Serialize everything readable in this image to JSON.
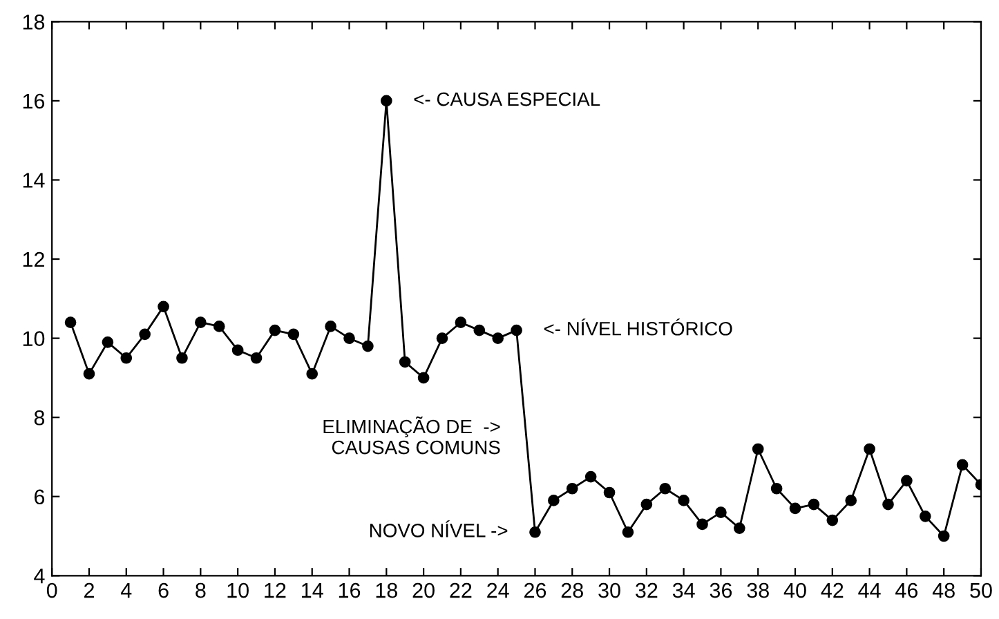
{
  "chart_data": {
    "type": "line",
    "x": [
      1,
      2,
      3,
      4,
      5,
      6,
      7,
      8,
      9,
      10,
      11,
      12,
      13,
      14,
      15,
      16,
      17,
      18,
      19,
      20,
      21,
      22,
      23,
      24,
      25,
      26,
      27,
      28,
      29,
      30,
      31,
      32,
      33,
      34,
      35,
      36,
      37,
      38,
      39,
      40,
      41,
      42,
      43,
      44,
      45,
      46,
      47,
      48,
      49,
      50
    ],
    "series": [
      {
        "color": "#000000",
        "values": [
          10.4,
          9.1,
          9.9,
          9.5,
          10.1,
          10.8,
          9.5,
          10.4,
          10.3,
          9.7,
          9.5,
          10.2,
          10.1,
          9.1,
          10.3,
          10.0,
          9.8,
          16.0,
          9.4,
          9.0,
          10.0,
          10.4,
          10.2,
          10.0,
          10.2,
          5.1,
          5.9,
          6.2,
          6.5,
          6.1,
          5.1,
          5.8,
          6.2,
          5.9,
          5.3,
          5.6,
          5.2,
          7.2,
          6.2,
          5.7,
          5.8,
          5.4,
          5.9,
          7.2,
          5.8,
          6.4,
          5.5,
          5.0,
          6.8,
          6.3
        ]
      }
    ],
    "xlim": [
      0,
      50
    ],
    "xticks": [
      0,
      2,
      4,
      6,
      8,
      10,
      12,
      14,
      16,
      18,
      20,
      22,
      24,
      26,
      28,
      30,
      32,
      34,
      36,
      38,
      40,
      42,
      44,
      46,
      48,
      50
    ],
    "ylim": [
      4,
      18
    ],
    "yticks": [
      4,
      6,
      8,
      10,
      12,
      14,
      16,
      18
    ],
    "marker": "circle",
    "line_style": "solid",
    "grid": false,
    "annotations": [
      {
        "text": "<- CAUSA ESPECIAL",
        "x": 18,
        "y": 16.0
      },
      {
        "text": "<- NÍVEL HISTÓRICO",
        "x": 25,
        "y": 10.2
      },
      {
        "text": "ELIMINAÇÃO DE  ->\nCAUSAS COMUNS",
        "x": 25.6,
        "y": 7.5
      },
      {
        "text": "NOVO NÍVEL ->",
        "x": 26,
        "y": 5.1
      }
    ]
  }
}
